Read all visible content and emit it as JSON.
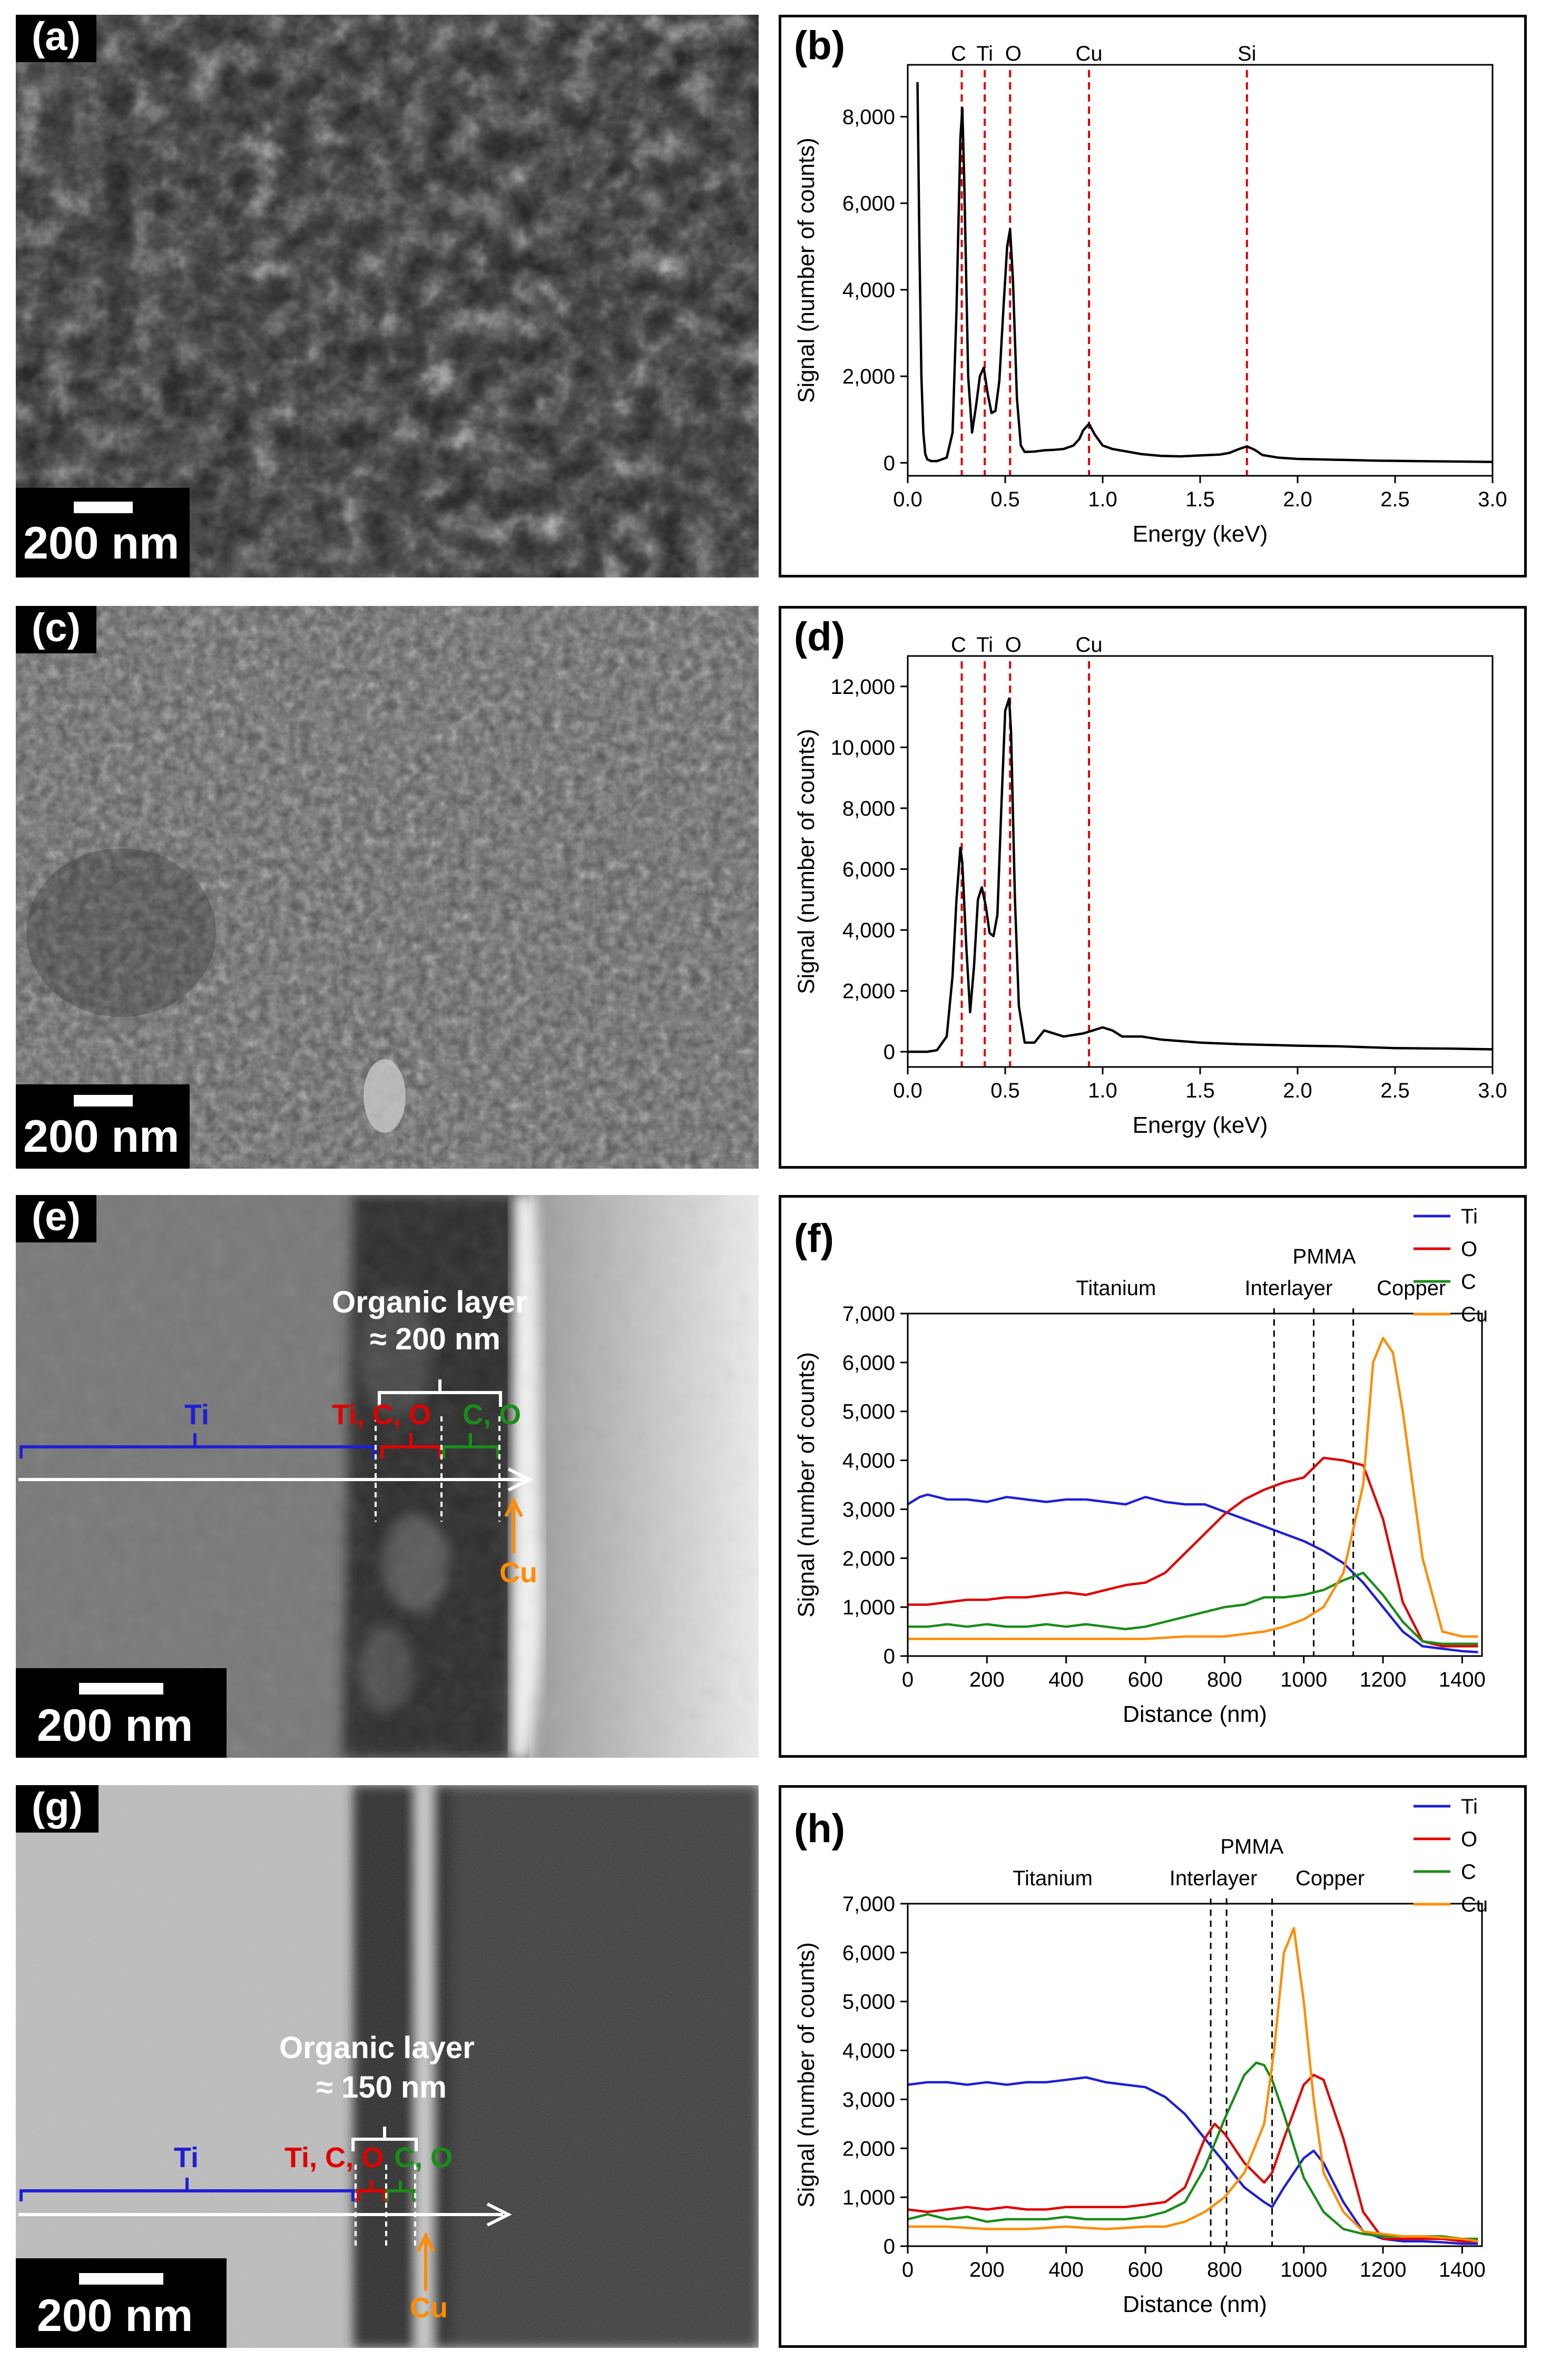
{
  "panels": {
    "a": {
      "label": "(a)",
      "scalebar": "200 nm"
    },
    "b": {
      "label": "(b)"
    },
    "c": {
      "label": "(c)",
      "scalebar": "200 nm"
    },
    "d": {
      "label": "(d)"
    },
    "e": {
      "label": "(e)",
      "scalebar": "200 nm",
      "layer_title": "Organic layer",
      "layer_thickness": "≈ 200 nm",
      "zone_ti": "Ti",
      "zone_ticO": "Ti, C, O",
      "zone_co": "C, O",
      "cu": "Cu"
    },
    "f": {
      "label": "(f)"
    },
    "g": {
      "label": "(g)",
      "scalebar": "200 nm",
      "layer_title": "Organic layer",
      "layer_thickness": "≈ 150 nm",
      "zone_ti": "Ti",
      "zone_ticO": "Ti, C, O",
      "zone_co": "C, O",
      "cu": "Cu"
    },
    "h": {
      "label": "(h)"
    }
  },
  "colors": {
    "Ti": "#1f1fd6",
    "O": "#e00000",
    "C": "#1a8c1a",
    "Cu": "#ff8c00",
    "ref_line": "#e00000"
  },
  "chart_data": [
    {
      "id": "b",
      "type": "line",
      "xlabel": "Energy (keV)",
      "ylabel": "Signal (number of counts)",
      "xlim": [
        0,
        3
      ],
      "ylim": [
        -300,
        9200
      ],
      "xticks": [
        0.0,
        0.5,
        1.0,
        1.5,
        2.0,
        2.5,
        3.0
      ],
      "xtick_labels": [
        "0.0",
        "0.5",
        "1.0",
        "1.5",
        "2.0",
        "2.5",
        "3.0"
      ],
      "yticks": [
        0,
        2000,
        4000,
        6000,
        8000
      ],
      "ytick_labels": [
        "0",
        "2,000",
        "4,000",
        "6,000",
        "8,000"
      ],
      "reference_lines": [
        {
          "label": "C",
          "x": 0.277
        },
        {
          "label": "Ti",
          "x": 0.395
        },
        {
          "label": "O",
          "x": 0.525
        },
        {
          "label": "Cu",
          "x": 0.93
        },
        {
          "label": "Si",
          "x": 1.74
        }
      ],
      "series": [
        {
          "x": [
            0.05,
            0.06,
            0.07,
            0.08,
            0.09,
            0.1,
            0.12,
            0.15,
            0.2,
            0.23,
            0.25,
            0.27,
            0.28,
            0.29,
            0.31,
            0.33,
            0.35,
            0.37,
            0.39,
            0.41,
            0.43,
            0.45,
            0.47,
            0.49,
            0.51,
            0.525,
            0.54,
            0.56,
            0.58,
            0.6,
            0.65,
            0.7,
            0.75,
            0.8,
            0.85,
            0.88,
            0.9,
            0.93,
            0.96,
            1.0,
            1.05,
            1.1,
            1.2,
            1.3,
            1.4,
            1.5,
            1.6,
            1.65,
            1.7,
            1.74,
            1.78,
            1.82,
            1.9,
            2.0,
            2.2,
            2.4,
            2.6,
            2.8,
            3.0
          ],
          "y": [
            8800,
            5000,
            2000,
            700,
            200,
            80,
            40,
            40,
            120,
            700,
            3500,
            7500,
            8200,
            6500,
            2000,
            700,
            1300,
            2000,
            2200,
            1600,
            1150,
            1200,
            1900,
            3500,
            5000,
            5400,
            4200,
            1500,
            400,
            250,
            260,
            290,
            300,
            320,
            400,
            550,
            750,
            900,
            650,
            400,
            320,
            280,
            200,
            160,
            150,
            170,
            190,
            230,
            320,
            380,
            300,
            180,
            120,
            90,
            70,
            50,
            40,
            30,
            20
          ]
        }
      ]
    },
    {
      "id": "d",
      "type": "line",
      "xlabel": "Energy (keV)",
      "ylabel": "Signal (number of counts)",
      "xlim": [
        0,
        3
      ],
      "ylim": [
        -500,
        13000
      ],
      "xticks": [
        0.0,
        0.5,
        1.0,
        1.5,
        2.0,
        2.5,
        3.0
      ],
      "xtick_labels": [
        "0.0",
        "0.5",
        "1.0",
        "1.5",
        "2.0",
        "2.5",
        "3.0"
      ],
      "yticks": [
        0,
        2000,
        4000,
        6000,
        8000,
        10000,
        12000
      ],
      "ytick_labels": [
        "0",
        "2,000",
        "4,000",
        "6,000",
        "8,000",
        "10,000",
        "12,000"
      ],
      "reference_lines": [
        {
          "label": "C",
          "x": 0.277
        },
        {
          "label": "Ti",
          "x": 0.395
        },
        {
          "label": "O",
          "x": 0.525
        },
        {
          "label": "Cu",
          "x": 0.93
        }
      ],
      "series": [
        {
          "x": [
            0.0,
            0.1,
            0.15,
            0.2,
            0.23,
            0.25,
            0.27,
            0.28,
            0.3,
            0.32,
            0.34,
            0.36,
            0.38,
            0.4,
            0.42,
            0.44,
            0.46,
            0.48,
            0.5,
            0.52,
            0.53,
            0.55,
            0.57,
            0.6,
            0.65,
            0.7,
            0.8,
            0.9,
            0.95,
            1.0,
            1.05,
            1.1,
            1.2,
            1.3,
            1.5,
            1.7,
            2.0,
            2.2,
            2.5,
            2.8,
            3.0
          ],
          "y": [
            0,
            0,
            50,
            500,
            2500,
            5000,
            6700,
            6200,
            3500,
            1300,
            2800,
            5000,
            5400,
            4800,
            3900,
            3800,
            4500,
            8000,
            11200,
            11600,
            10500,
            5000,
            1500,
            300,
            300,
            700,
            500,
            600,
            700,
            800,
            700,
            500,
            500,
            400,
            300,
            250,
            200,
            180,
            120,
            100,
            80
          ]
        }
      ]
    },
    {
      "id": "f",
      "type": "line",
      "xlabel": "Distance (nm)",
      "ylabel": "Signal (number of counts)",
      "xlim": [
        0,
        1450
      ],
      "ylim": [
        0,
        7000
      ],
      "xticks": [
        0,
        200,
        400,
        600,
        800,
        1000,
        1200,
        1400
      ],
      "xtick_labels": [
        "0",
        "200",
        "400",
        "600",
        "800",
        "1000",
        "1200",
        "1400"
      ],
      "yticks": [
        0,
        1000,
        2000,
        3000,
        4000,
        5000,
        6000,
        7000
      ],
      "ytick_labels": [
        "0",
        "1,000",
        "2,000",
        "3,000",
        "4,000",
        "5,000",
        "6,000",
        "7,000"
      ],
      "boundaries": [
        925,
        1025,
        1125
      ],
      "region_labels": [
        "Titanium",
        "PMMA",
        "Interlayer",
        "Copper"
      ],
      "series": [
        {
          "name": "Ti",
          "x": [
            0,
            30,
            50,
            100,
            150,
            200,
            250,
            300,
            350,
            400,
            450,
            500,
            550,
            600,
            650,
            700,
            750,
            800,
            850,
            900,
            950,
            1000,
            1050,
            1100,
            1150,
            1200,
            1250,
            1300,
            1350,
            1400,
            1440
          ],
          "y": [
            3100,
            3250,
            3300,
            3200,
            3200,
            3150,
            3250,
            3200,
            3150,
            3200,
            3200,
            3150,
            3100,
            3250,
            3150,
            3100,
            3100,
            2950,
            2800,
            2650,
            2500,
            2350,
            2150,
            1900,
            1500,
            1000,
            500,
            200,
            150,
            100,
            80
          ]
        },
        {
          "name": "O",
          "x": [
            0,
            50,
            100,
            150,
            200,
            250,
            300,
            350,
            400,
            450,
            500,
            550,
            600,
            650,
            700,
            750,
            800,
            850,
            900,
            950,
            1000,
            1050,
            1100,
            1150,
            1200,
            1250,
            1300,
            1350,
            1400,
            1440
          ],
          "y": [
            1050,
            1050,
            1100,
            1150,
            1150,
            1200,
            1200,
            1250,
            1300,
            1250,
            1350,
            1450,
            1500,
            1700,
            2100,
            2500,
            2900,
            3200,
            3400,
            3550,
            3650,
            4050,
            4000,
            3900,
            2800,
            1100,
            300,
            200,
            200,
            200
          ]
        },
        {
          "name": "C",
          "x": [
            0,
            50,
            100,
            150,
            200,
            250,
            300,
            350,
            400,
            450,
            500,
            550,
            600,
            650,
            700,
            750,
            800,
            850,
            900,
            950,
            1000,
            1050,
            1100,
            1150,
            1200,
            1250,
            1300,
            1350,
            1400,
            1440
          ],
          "y": [
            600,
            600,
            650,
            600,
            650,
            600,
            600,
            650,
            600,
            650,
            600,
            550,
            600,
            700,
            800,
            900,
            1000,
            1050,
            1200,
            1200,
            1250,
            1350,
            1550,
            1700,
            1250,
            700,
            300,
            250,
            250,
            250
          ]
        },
        {
          "name": "Cu",
          "x": [
            0,
            100,
            200,
            300,
            400,
            500,
            600,
            700,
            800,
            850,
            900,
            950,
            1000,
            1050,
            1100,
            1150,
            1175,
            1200,
            1225,
            1250,
            1300,
            1350,
            1400,
            1440
          ],
          "y": [
            350,
            350,
            350,
            350,
            350,
            350,
            350,
            400,
            400,
            450,
            500,
            600,
            750,
            1000,
            1700,
            3500,
            6000,
            6500,
            6200,
            5000,
            2000,
            500,
            400,
            400
          ]
        }
      ]
    },
    {
      "id": "h",
      "type": "line",
      "xlabel": "Distance (nm)",
      "ylabel": "Signal (number of counts)",
      "xlim": [
        0,
        1450
      ],
      "ylim": [
        0,
        7000
      ],
      "xticks": [
        0,
        200,
        400,
        600,
        800,
        1000,
        1200,
        1400
      ],
      "xtick_labels": [
        "0",
        "200",
        "400",
        "600",
        "800",
        "1000",
        "1200",
        "1400"
      ],
      "yticks": [
        0,
        1000,
        2000,
        3000,
        4000,
        5000,
        6000,
        7000
      ],
      "ytick_labels": [
        "0",
        "1,000",
        "2,000",
        "3,000",
        "4,000",
        "5,000",
        "6,000",
        "7,000"
      ],
      "boundaries": [
        765,
        805,
        920
      ],
      "region_labels": [
        "Titanium",
        "PMMA",
        "Interlayer",
        "Copper"
      ],
      "series": [
        {
          "name": "Ti",
          "x": [
            0,
            50,
            100,
            150,
            200,
            250,
            300,
            350,
            400,
            450,
            500,
            550,
            600,
            650,
            700,
            750,
            800,
            850,
            900,
            920,
            950,
            1000,
            1025,
            1050,
            1100,
            1150,
            1200,
            1250,
            1300,
            1350,
            1400,
            1440
          ],
          "y": [
            3300,
            3350,
            3350,
            3300,
            3350,
            3300,
            3350,
            3350,
            3400,
            3450,
            3350,
            3300,
            3250,
            3050,
            2700,
            2200,
            1700,
            1200,
            900,
            800,
            1200,
            1800,
            1950,
            1700,
            900,
            300,
            150,
            100,
            100,
            80,
            50,
            50
          ]
        },
        {
          "name": "O",
          "x": [
            0,
            50,
            100,
            150,
            200,
            250,
            300,
            350,
            400,
            450,
            500,
            550,
            600,
            650,
            700,
            750,
            775,
            800,
            850,
            900,
            920,
            950,
            1000,
            1025,
            1050,
            1100,
            1150,
            1200,
            1250,
            1300,
            1350,
            1400,
            1440
          ],
          "y": [
            750,
            700,
            750,
            800,
            750,
            800,
            750,
            750,
            800,
            800,
            800,
            800,
            850,
            900,
            1200,
            2200,
            2500,
            2300,
            1700,
            1300,
            1500,
            2200,
            3300,
            3500,
            3400,
            2200,
            700,
            150,
            150,
            150,
            150,
            100,
            100
          ]
        },
        {
          "name": "C",
          "x": [
            0,
            50,
            100,
            150,
            200,
            250,
            300,
            350,
            400,
            450,
            500,
            550,
            600,
            650,
            700,
            750,
            800,
            850,
            880,
            900,
            920,
            950,
            1000,
            1050,
            1100,
            1150,
            1200,
            1250,
            1300,
            1350,
            1400,
            1440
          ],
          "y": [
            550,
            650,
            550,
            600,
            500,
            550,
            550,
            550,
            600,
            550,
            550,
            550,
            600,
            700,
            900,
            1600,
            2600,
            3500,
            3750,
            3700,
            3400,
            2700,
            1400,
            700,
            350,
            250,
            200,
            200,
            200,
            200,
            150,
            150
          ]
        },
        {
          "name": "Cu",
          "x": [
            0,
            100,
            200,
            300,
            400,
            500,
            600,
            650,
            700,
            750,
            800,
            850,
            900,
            925,
            950,
            975,
            1000,
            1025,
            1050,
            1100,
            1150,
            1200,
            1250,
            1300,
            1400,
            1440
          ],
          "y": [
            400,
            400,
            350,
            350,
            400,
            350,
            400,
            400,
            500,
            700,
            1000,
            1500,
            2500,
            4000,
            6000,
            6500,
            5000,
            3000,
            1500,
            700,
            300,
            250,
            200,
            200,
            150,
            100
          ]
        }
      ]
    }
  ]
}
